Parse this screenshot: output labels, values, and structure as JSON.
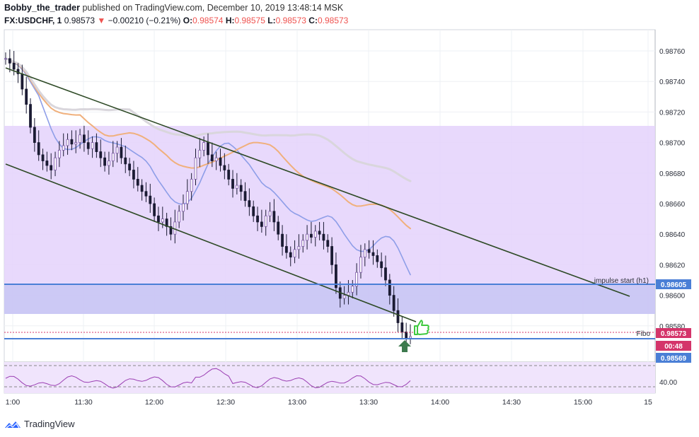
{
  "header": {
    "author": "Bobby_the_trader",
    "published": "published on TradingView.com, December 10, 2019 13:48:14 MSK",
    "symbol": "FX:USDCHF, 1",
    "last": "0.98573",
    "change": "−0.00210 (−0.21%)",
    "o_label": "O:",
    "o_value": "0.98574",
    "h_label": "H:",
    "h_value": "0.98575",
    "l_label": "L:",
    "l_value": "0.98573",
    "c_label": "C:",
    "c_value": "0.98573"
  },
  "chart_data": {
    "type": "candlestick",
    "price_axis_ticks": [
      "0.98760",
      "0.98740",
      "0.98720",
      "0.98700",
      "0.98680",
      "0.98660",
      "0.98640",
      "0.98620",
      "0.98600",
      "0.98580"
    ],
    "time_axis_ticks": [
      "1:00",
      "11:30",
      "12:00",
      "12:30",
      "13:00",
      "13:30",
      "14:00",
      "14:30",
      "15:00",
      "15"
    ],
    "price_labels": [
      {
        "text": "0.98605",
        "color": "#4a7fd6",
        "price": 0.98605
      },
      {
        "text": "0.98573",
        "color": "#d4346a",
        "price": 0.98573
      },
      {
        "text": "00:48",
        "color": "#d4346a",
        "price": 0.98567
      },
      {
        "text": "0.98569",
        "color": "#4a7fd6",
        "price": 0.98569
      }
    ],
    "annotations": [
      "impulse start (h1)",
      "Fibo"
    ],
    "rsi_level": "40.00",
    "close_path": [
      0.98755,
      0.98752,
      0.98748,
      0.98745,
      0.98735,
      0.98725,
      0.9871,
      0.987,
      0.98692,
      0.98688,
      0.98685,
      0.98682,
      0.9869,
      0.98695,
      0.98698,
      0.98702,
      0.98699,
      0.987,
      0.98705,
      0.987,
      0.98696,
      0.987,
      0.98694,
      0.9869,
      0.98685,
      0.98688,
      0.98693,
      0.98697,
      0.9869,
      0.98686,
      0.98682,
      0.98676,
      0.98672,
      0.98668,
      0.98665,
      0.9866,
      0.98652,
      0.98648,
      0.9865,
      0.98645,
      0.9864,
      0.98648,
      0.98655,
      0.9866,
      0.98668,
      0.98676,
      0.9869,
      0.98695,
      0.987,
      0.98692,
      0.98688,
      0.9869,
      0.98685,
      0.98682,
      0.98676,
      0.9867,
      0.98672,
      0.98668,
      0.98662,
      0.98658,
      0.98652,
      0.98648,
      0.98645,
      0.98652,
      0.98655,
      0.98648,
      0.9864,
      0.98632,
      0.98628,
      0.98625,
      0.9863,
      0.98632,
      0.98636,
      0.9864,
      0.98638,
      0.98642,
      0.9864,
      0.98636,
      0.98632,
      0.9862,
      0.98605,
      0.98598,
      0.986,
      0.98602,
      0.98606,
      0.98615,
      0.98625,
      0.9863,
      0.98628,
      0.98626,
      0.98622,
      0.98618,
      0.9861,
      0.986,
      0.9859,
      0.98582,
      0.98576,
      0.98572,
      0.98573
    ]
  },
  "footer": {
    "brand": "TradingView"
  }
}
